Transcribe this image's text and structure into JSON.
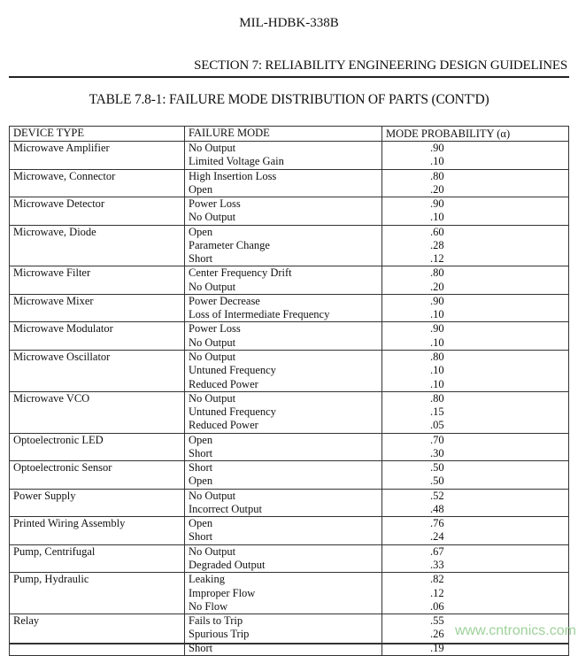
{
  "header": {
    "doc_id": "MIL-HDBK-338B",
    "section": "SECTION 7:  RELIABILITY ENGINEERING DESIGN GUIDELINES",
    "table_title": "TABLE 7.8-1:  FAILURE MODE DISTRIBUTION OF PARTS (CONT'D)"
  },
  "table": {
    "columns": [
      "DEVICE TYPE",
      "FAILURE MODE",
      "MODE PROBABILITY (α)"
    ],
    "rows": [
      {
        "device": "Microwave Amplifier",
        "modes": [
          "No Output",
          "Limited Voltage Gain"
        ],
        "probs": [
          ".90",
          ".10"
        ]
      },
      {
        "device": "Microwave, Connector",
        "modes": [
          "High Insertion Loss",
          "Open"
        ],
        "probs": [
          ".80",
          ".20"
        ]
      },
      {
        "device": "Microwave Detector",
        "modes": [
          "Power Loss",
          "No Output"
        ],
        "probs": [
          ".90",
          ".10"
        ]
      },
      {
        "device": "Microwave, Diode",
        "modes": [
          "Open",
          "Parameter Change",
          "Short"
        ],
        "probs": [
          ".60",
          ".28",
          ".12"
        ]
      },
      {
        "device": "Microwave Filter",
        "modes": [
          "Center Frequency Drift",
          "No Output"
        ],
        "probs": [
          ".80",
          ".20"
        ]
      },
      {
        "device": "Microwave Mixer",
        "modes": [
          "Power Decrease",
          "Loss of Intermediate Frequency"
        ],
        "probs": [
          ".90",
          ".10"
        ]
      },
      {
        "device": "Microwave Modulator",
        "modes": [
          "Power Loss",
          "No Output"
        ],
        "probs": [
          ".90",
          ".10"
        ]
      },
      {
        "device": "Microwave Oscillator",
        "modes": [
          "No Output",
          "Untuned Frequency",
          "Reduced Power"
        ],
        "probs": [
          ".80",
          ".10",
          ".10"
        ]
      },
      {
        "device": "Microwave VCO",
        "modes": [
          "No Output",
          "Untuned Frequency",
          "Reduced Power"
        ],
        "probs": [
          ".80",
          ".15",
          ".05"
        ]
      },
      {
        "device": "Optoelectronic LED",
        "modes": [
          "Open",
          "Short"
        ],
        "probs": [
          ".70",
          ".30"
        ]
      },
      {
        "device": "Optoelectronic Sensor",
        "modes": [
          "Short",
          "Open"
        ],
        "probs": [
          ".50",
          ".50"
        ]
      },
      {
        "device": "Power Supply",
        "modes": [
          "No Output",
          "Incorrect Output"
        ],
        "probs": [
          ".52",
          ".48"
        ]
      },
      {
        "device": "Printed Wiring Assembly",
        "modes": [
          "Open",
          "Short"
        ],
        "probs": [
          ".76",
          ".24"
        ]
      },
      {
        "device": "Pump, Centrifugal",
        "modes": [
          "No Output",
          "Degraded Output"
        ],
        "probs": [
          ".67",
          ".33"
        ]
      },
      {
        "device": "Pump, Hydraulic",
        "modes": [
          "Leaking",
          "Improper Flow",
          "No Flow"
        ],
        "probs": [
          ".82",
          ".12",
          ".06"
        ]
      },
      {
        "device": "Relay",
        "modes": [
          "Fails to Trip",
          "Spurious Trip",
          "Short"
        ],
        "probs": [
          ".55",
          ".26",
          ".19"
        ]
      }
    ]
  },
  "watermark": "www.cntronics.com",
  "colors": {
    "watermark": "#9ed19a",
    "text": "#111111"
  }
}
